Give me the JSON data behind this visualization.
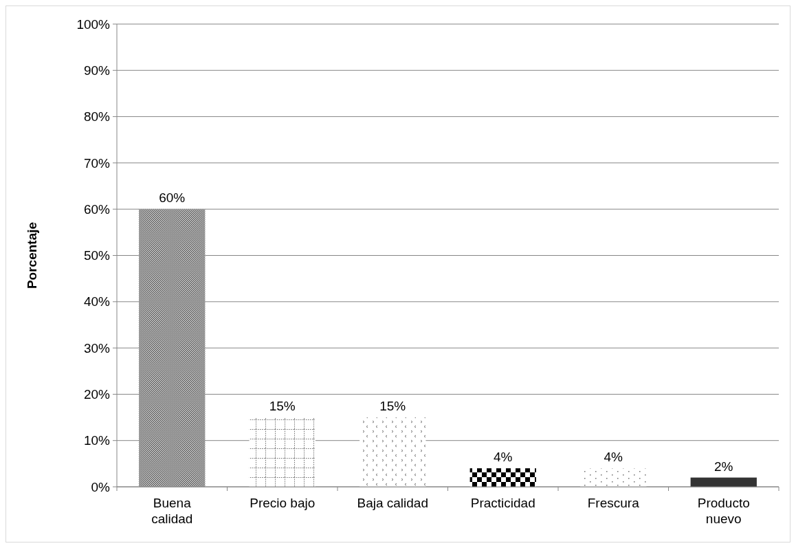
{
  "chart_data": {
    "type": "bar",
    "ylabel": "Porcentaje",
    "categories": [
      "Buena calidad",
      "Precio bajo",
      "Baja calidad",
      "Practicidad",
      "Frescura",
      "Producto nuevo"
    ],
    "values": [
      60,
      15,
      15,
      4,
      4,
      2
    ],
    "value_labels": [
      "60%",
      "15%",
      "15%",
      "4%",
      "4%",
      "2%"
    ],
    "colors": [
      "#4d4d4d",
      "#707070",
      "#707070",
      "#000000",
      "#707070",
      "#333333"
    ],
    "ylim": [
      0,
      100
    ],
    "yticks": [
      {
        "value": 0,
        "label": "0%"
      },
      {
        "value": 10,
        "label": "10%"
      },
      {
        "value": 20,
        "label": "20%"
      },
      {
        "value": 30,
        "label": "30%"
      },
      {
        "value": 40,
        "label": "40%"
      },
      {
        "value": 50,
        "label": "50%"
      },
      {
        "value": 60,
        "label": "60%"
      },
      {
        "value": 70,
        "label": "70%"
      },
      {
        "value": 80,
        "label": "80%"
      },
      {
        "value": 90,
        "label": "90%"
      },
      {
        "value": 100,
        "label": "100%"
      }
    ],
    "grid": "y"
  }
}
